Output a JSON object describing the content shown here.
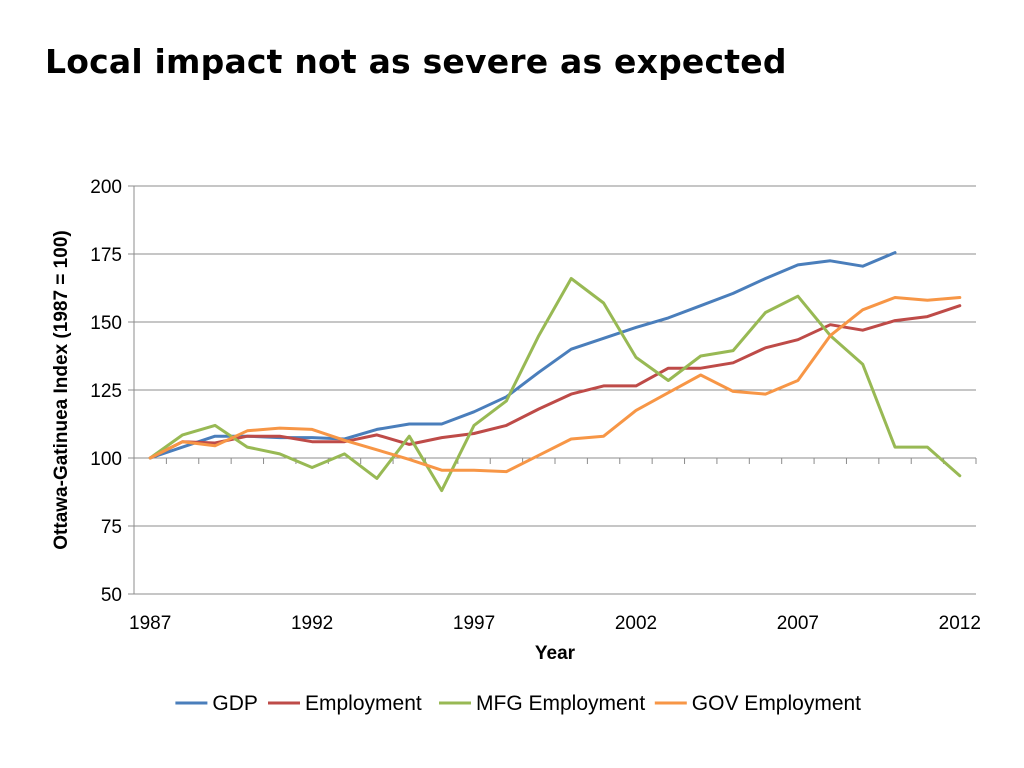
{
  "slide": {
    "title": "Local impact not as severe as expected"
  },
  "chart_data": {
    "type": "line",
    "title": "",
    "xlabel": "Year",
    "ylabel": "Ottawa-Gatinuea Index (1987 = 100)",
    "x": [
      1987,
      1988,
      1989,
      1990,
      1991,
      1992,
      1993,
      1994,
      1995,
      1996,
      1997,
      1998,
      1999,
      2000,
      2001,
      2002,
      2003,
      2004,
      2005,
      2006,
      2007,
      2008,
      2009,
      2010,
      2011,
      2012
    ],
    "xlim": [
      1986.5,
      2012.5
    ],
    "ylim": [
      50,
      200
    ],
    "xticks": [
      1987,
      1992,
      1997,
      2002,
      2007,
      2012
    ],
    "xtick_labels": [
      "1987",
      "1992",
      "1997",
      "2002",
      "2007",
      "2012"
    ],
    "yticks": [
      50,
      75,
      100,
      125,
      150,
      175,
      200
    ],
    "ytick_labels": [
      "50",
      "75",
      "100",
      "125",
      "150",
      "175",
      "200"
    ],
    "grid": true,
    "legend": "bottom",
    "series": [
      {
        "name": "GDP",
        "color": "#4a7ebb",
        "values": [
          100,
          104,
          108,
          108,
          107.5,
          107.5,
          107,
          110.5,
          112.5,
          112.5,
          117,
          122.5,
          131.5,
          140,
          144,
          148,
          151.5,
          156,
          160.5,
          166,
          171,
          172.5,
          170.5,
          175.5,
          null,
          null
        ]
      },
      {
        "name": "Employment",
        "color": "#be4b48",
        "values": [
          100,
          106,
          105.5,
          108,
          108,
          106,
          106,
          108.5,
          105,
          107.5,
          109,
          112,
          118,
          123.5,
          126.5,
          126.5,
          133,
          133,
          135,
          140.5,
          143.5,
          149,
          147,
          150.5,
          152,
          156
        ]
      },
      {
        "name": "MFG Employment",
        "color": "#98b954",
        "values": [
          100,
          108.5,
          112,
          104,
          101.5,
          96.5,
          101.5,
          92.5,
          108,
          88,
          112,
          121,
          145,
          166,
          157,
          137,
          128.5,
          137.5,
          139.5,
          153.5,
          159.5,
          145,
          134.5,
          104,
          104,
          93.5
        ]
      },
      {
        "name": "GOV Employment",
        "color": "#f79646",
        "values": [
          100,
          106,
          104.5,
          110,
          111,
          110.5,
          106.5,
          103,
          99.5,
          95.5,
          95.5,
          95,
          101,
          107,
          108,
          117.5,
          124,
          130.5,
          124.5,
          123.5,
          128.5,
          145,
          154.5,
          159,
          158,
          159
        ]
      }
    ]
  }
}
